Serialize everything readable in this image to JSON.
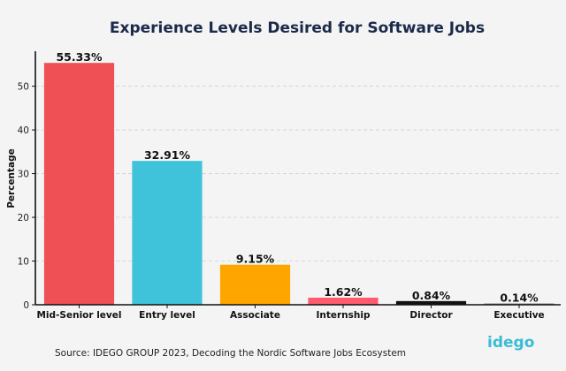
{
  "chart_data": {
    "type": "bar",
    "title": "Experience Levels Desired for Software Jobs",
    "xlabel": "",
    "ylabel": "Percentage",
    "ylim": [
      0,
      58
    ],
    "yticks": [
      0,
      10,
      20,
      30,
      40,
      50
    ],
    "grid": true,
    "categories": [
      "Mid-Senior level",
      "Entry level",
      "Associate",
      "Internship",
      "Director",
      "Executive"
    ],
    "values": [
      55.33,
      32.91,
      9.15,
      1.62,
      0.84,
      0.14
    ],
    "data_labels": [
      "55.33%",
      "32.91%",
      "9.15%",
      "1.62%",
      "0.84%",
      "0.14%"
    ],
    "colors": [
      "#ef5055",
      "#3ec3da",
      "#ffa500",
      "#ff5a6e",
      "#111111",
      "#8a8a8a"
    ]
  },
  "footer": {
    "source": "Source: IDEGO GROUP 2023, Decoding the Nordic Software Jobs Ecosystem",
    "logo_text": "idego"
  }
}
